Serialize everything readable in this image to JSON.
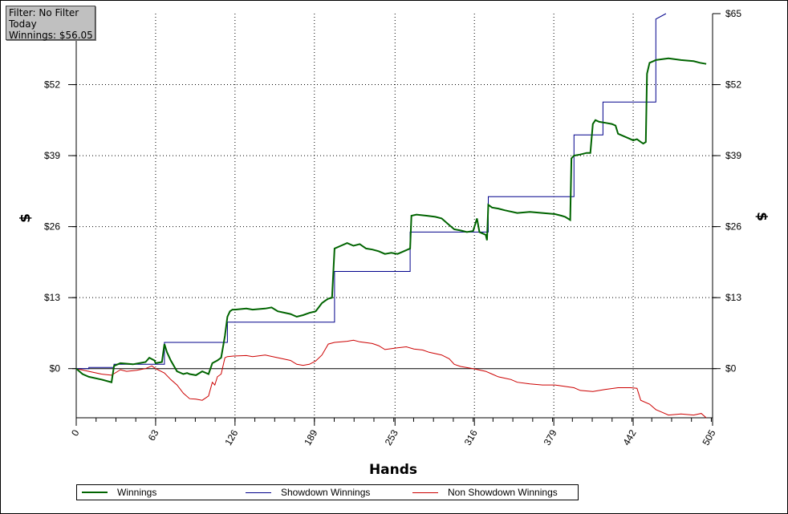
{
  "info": {
    "filter": "Filter: No Filter",
    "period": "Today",
    "winnings": "Winnings: $56.05"
  },
  "chart_data": {
    "type": "line",
    "xlabel": "Hands",
    "ylabel_left": "$",
    "ylabel_right": "$",
    "xlim": [
      0,
      505
    ],
    "ylim": [
      -9,
      65
    ],
    "x_ticks": [
      0,
      63,
      126,
      189,
      253,
      316,
      379,
      442,
      505
    ],
    "y_ticks": [
      0,
      13,
      26,
      39,
      52,
      65
    ],
    "y_tick_labels": [
      "$0",
      "$13",
      "$26",
      "$39",
      "$52",
      "$65"
    ],
    "grid": true,
    "legend_position": "bottom",
    "series": [
      {
        "name": "Winnings",
        "color": "#006400",
        "x": [
          0,
          5,
          10,
          20,
          28,
          30,
          35,
          45,
          55,
          58,
          62,
          63,
          68,
          70,
          72,
          75,
          80,
          85,
          88,
          90,
          95,
          100,
          105,
          108,
          112,
          115,
          118,
          120,
          122,
          124,
          126,
          135,
          140,
          150,
          155,
          160,
          170,
          175,
          180,
          185,
          190,
          195,
          198,
          200,
          203,
          205,
          210,
          215,
          220,
          225,
          230,
          235,
          240,
          245,
          250,
          255,
          260,
          265,
          266,
          270,
          278,
          285,
          290,
          295,
          300,
          305,
          310,
          315,
          318,
          320,
          322,
          325,
          326,
          327,
          330,
          335,
          340,
          350,
          360,
          370,
          380,
          385,
          388,
          390,
          392,
          393,
          395,
          400,
          405,
          408,
          410,
          412,
          415,
          420,
          425,
          428,
          430,
          432,
          435,
          440,
          442,
          445,
          448,
          450,
          452,
          453,
          455,
          458,
          460,
          470,
          480,
          490,
          495,
          500
        ],
        "y": [
          0,
          -1,
          -1.5,
          -2,
          -2.5,
          0.5,
          1,
          0.8,
          1.2,
          2,
          1.5,
          1,
          1.2,
          4.5,
          3,
          1.5,
          -0.5,
          -1,
          -0.8,
          -1,
          -1.2,
          -0.5,
          -1,
          1,
          1.5,
          2,
          6,
          9.5,
          10.5,
          10.8,
          10.8,
          11,
          10.8,
          11,
          11.2,
          10.5,
          10,
          9.5,
          9.8,
          10.2,
          10.5,
          12,
          12.5,
          12.8,
          13,
          22,
          22.5,
          23,
          22.5,
          22.8,
          22,
          21.8,
          21.5,
          21,
          21.2,
          21,
          21.5,
          22,
          28,
          28.2,
          28,
          27.8,
          27.5,
          26.5,
          25.5,
          25.3,
          25,
          25.2,
          27.5,
          25,
          24.8,
          24.5,
          23.5,
          30,
          29.5,
          29.3,
          29,
          28.5,
          28.7,
          28.5,
          28.3,
          28,
          27.8,
          27.5,
          27.2,
          38.5,
          39,
          39.2,
          39.5,
          39.5,
          44.8,
          45.5,
          45.2,
          45,
          44.8,
          44.5,
          43,
          42.8,
          42.5,
          42,
          41.8,
          42,
          41.5,
          41.2,
          41.5,
          54,
          56,
          56.3,
          56.5,
          56.8,
          56.5,
          56.3,
          56,
          55.8
        ]
      },
      {
        "name": "Showdown Winnings",
        "color": "#00008b",
        "x": [
          0,
          10,
          10,
          30,
          30,
          70,
          70,
          120,
          120,
          205,
          205,
          265,
          265,
          327,
          327,
          395,
          395,
          418,
          418,
          460,
          460,
          468
        ],
        "y": [
          0,
          0,
          0.2,
          0.2,
          0.8,
          0.8,
          4.8,
          4.8,
          8.5,
          8.5,
          17.8,
          17.8,
          25,
          25,
          31.5,
          31.5,
          42.8,
          42.8,
          48.8,
          48.8,
          64,
          65
        ]
      },
      {
        "name": "Non Showdown Winnings",
        "color": "#cc0000",
        "x": [
          0,
          10,
          20,
          28,
          35,
          40,
          48,
          55,
          60,
          63,
          70,
          75,
          80,
          85,
          90,
          95,
          100,
          105,
          108,
          110,
          112,
          115,
          118,
          120,
          125,
          135,
          140,
          150,
          160,
          170,
          175,
          180,
          185,
          190,
          195,
          200,
          205,
          215,
          220,
          225,
          235,
          240,
          245,
          255,
          262,
          268,
          275,
          280,
          290,
          296,
          300,
          305,
          315,
          325,
          330,
          335,
          345,
          350,
          360,
          370,
          380,
          395,
          400,
          410,
          420,
          430,
          440,
          445,
          448,
          455,
          460,
          465,
          470,
          480,
          490,
          496,
          500
        ],
        "y": [
          0,
          -0.5,
          -1,
          -1.2,
          -0.2,
          -0.5,
          -0.3,
          0,
          0.5,
          0,
          -0.8,
          -2,
          -3,
          -4.5,
          -5.5,
          -5.6,
          -5.8,
          -5,
          -2.5,
          -3,
          -1.5,
          -1,
          2,
          2.2,
          2.3,
          2.4,
          2.2,
          2.5,
          2,
          1.5,
          0.8,
          0.6,
          0.8,
          1.4,
          2.5,
          4.5,
          4.8,
          5,
          5.2,
          4.9,
          4.6,
          4.2,
          3.5,
          3.8,
          4,
          3.6,
          3.4,
          3.0,
          2.5,
          1.8,
          0.8,
          0.4,
          0,
          -0.5,
          -1,
          -1.5,
          -2,
          -2.5,
          -2.8,
          -3,
          -3,
          -3.5,
          -4,
          -4.2,
          -3.8,
          -3.5,
          -3.5,
          -3.6,
          -5.8,
          -6.5,
          -7.5,
          -8,
          -8.5,
          -8.3,
          -8.5,
          -8.2,
          -9
        ]
      }
    ]
  }
}
